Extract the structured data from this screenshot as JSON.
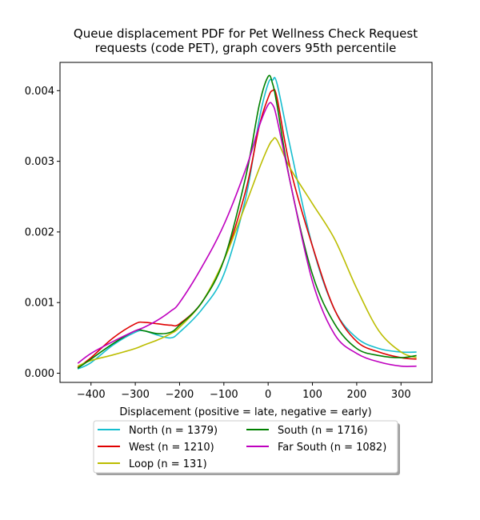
{
  "chart_data": {
    "type": "line",
    "title": "Queue displacement PDF for Pet Wellness Check Request\nrequests (code PET), graph covers 95th percentile",
    "xlabel": "Displacement (positive = late, negative = early)",
    "ylabel": "",
    "xlim": [
      -470,
      370
    ],
    "ylim": [
      -0.00013,
      0.0044
    ],
    "xticks": [
      -400,
      -300,
      -200,
      -100,
      0,
      100,
      200,
      300
    ],
    "xtick_labels": [
      "−400",
      "−300",
      "−200",
      "−100",
      "0",
      "100",
      "200",
      "300"
    ],
    "yticks": [
      0,
      0.001,
      0.002,
      0.003,
      0.004
    ],
    "ytick_labels": [
      "0.000",
      "0.001",
      "0.002",
      "0.003",
      "0.004"
    ],
    "grid": false,
    "legend_placement": "below",
    "legend_columns": 2,
    "x": [
      -430,
      -400,
      -350,
      -300,
      -280,
      -250,
      -220,
      -200,
      -150,
      -100,
      -50,
      -20,
      0,
      10,
      20,
      50,
      100,
      150,
      200,
      250,
      300,
      335
    ],
    "series": [
      {
        "name": "North (n = 1379)",
        "color": "#17becf",
        "values": [
          6e-05,
          0.00015,
          0.0004,
          0.00058,
          0.0006,
          0.00054,
          0.0005,
          0.00058,
          0.0009,
          0.0014,
          0.0025,
          0.0036,
          0.0041,
          0.00415,
          0.0041,
          0.0032,
          0.0018,
          0.0009,
          0.0005,
          0.00035,
          0.0003,
          0.0003
        ]
      },
      {
        "name": "West (n = 1210)",
        "color": "#e00000",
        "values": [
          8e-05,
          0.00022,
          0.0005,
          0.0007,
          0.00072,
          0.0007,
          0.00068,
          0.0007,
          0.001,
          0.0016,
          0.0026,
          0.0035,
          0.0039,
          0.004,
          0.0039,
          0.0029,
          0.0018,
          0.0009,
          0.00045,
          0.0003,
          0.00022,
          0.0002
        ]
      },
      {
        "name": "Loop (n = 131)",
        "color": "#bcbd00",
        "values": [
          0.0001,
          0.00018,
          0.00026,
          0.00035,
          0.0004,
          0.00047,
          0.00056,
          0.00065,
          0.001,
          0.0016,
          0.0024,
          0.0029,
          0.0032,
          0.0033,
          0.0033,
          0.0029,
          0.0024,
          0.0019,
          0.0012,
          0.0006,
          0.0003,
          0.00022
        ]
      },
      {
        "name": "South (n = 1716)",
        "color": "#008000",
        "values": [
          7e-05,
          0.0002,
          0.00042,
          0.0006,
          0.0006,
          0.00056,
          0.00058,
          0.00068,
          0.001,
          0.0016,
          0.0028,
          0.0038,
          0.0042,
          0.0041,
          0.0038,
          0.0027,
          0.0014,
          0.0007,
          0.00035,
          0.00025,
          0.00022,
          0.00025
        ]
      },
      {
        "name": "Far South (n = 1082)",
        "color": "#bf00bf",
        "values": [
          0.00014,
          0.00028,
          0.00045,
          0.0006,
          0.00065,
          0.00075,
          0.00088,
          0.001,
          0.0015,
          0.0021,
          0.0029,
          0.0035,
          0.0038,
          0.0038,
          0.0036,
          0.0027,
          0.0013,
          0.00055,
          0.00028,
          0.00016,
          0.0001,
          0.0001
        ]
      }
    ]
  }
}
